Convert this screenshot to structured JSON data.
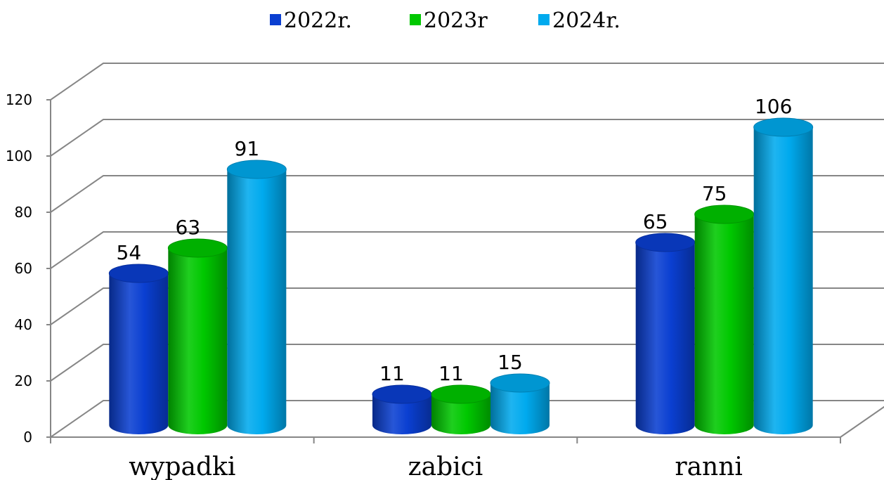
{
  "chart_data": {
    "type": "bar",
    "style": "3d-cylinder",
    "categories": [
      "wypadki",
      "zabici",
      "ranni"
    ],
    "series": [
      {
        "name": "2022r.",
        "values": [
          54,
          11,
          65
        ],
        "color": "#0a3fd1"
      },
      {
        "name": "2023r",
        "values": [
          63,
          11,
          75
        ],
        "color": "#00c800"
      },
      {
        "name": "2024r.",
        "values": [
          91,
          15,
          106
        ],
        "color": "#00aaee"
      }
    ],
    "y_ticks": [
      "0",
      "20",
      "40",
      "60",
      "80",
      "100",
      "120"
    ],
    "ylim": [
      0,
      120
    ],
    "grid": true,
    "legend_position": "top-center"
  }
}
